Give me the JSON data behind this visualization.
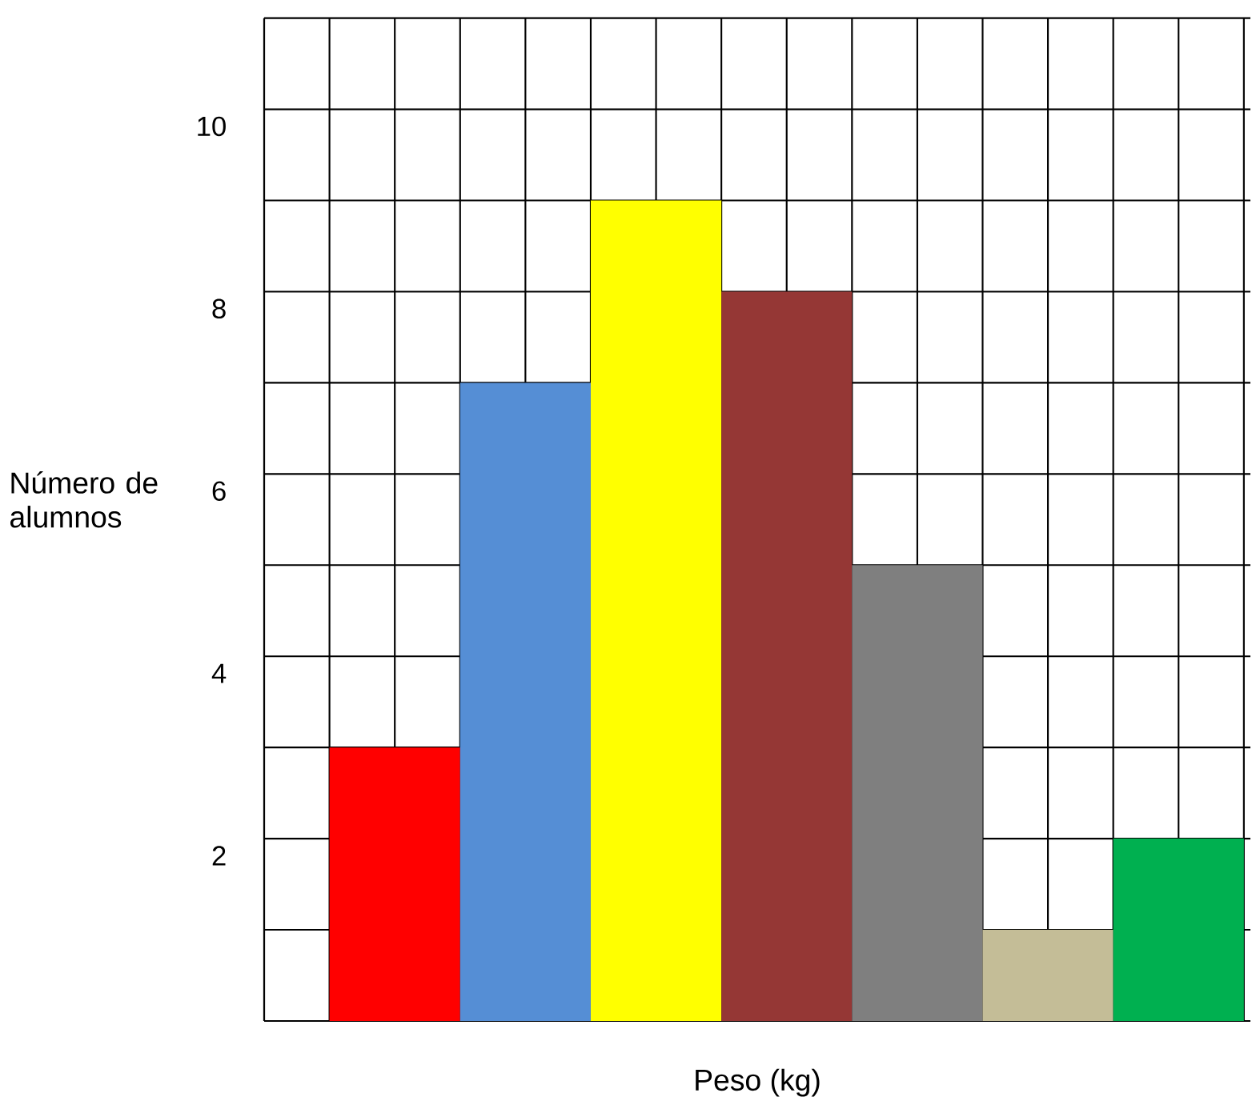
{
  "chart_data": {
    "type": "bar",
    "xlabel": "Peso (kg)",
    "ylabel": "Número de alumnos",
    "categories": [
      null,
      null,
      null,
      null,
      null,
      null,
      null
    ],
    "values": [
      3,
      7,
      9,
      8,
      5,
      1,
      2
    ],
    "colors": [
      "#ff0000",
      "#558ed5",
      "#ffff00",
      "#953735",
      "#7f7f7f",
      "#c4bd97",
      "#00b050"
    ],
    "ylim": [
      0,
      11
    ],
    "yticks": [
      {
        "value": 1,
        "label": null
      },
      2,
      {
        "value": 3,
        "label": null
      },
      4,
      {
        "value": 5,
        "label": null
      },
      6,
      {
        "value": 7,
        "label": null
      },
      8,
      {
        "value": 9,
        "label": null
      },
      10,
      {
        "value": 11,
        "label": null
      }
    ],
    "grid": true
  }
}
